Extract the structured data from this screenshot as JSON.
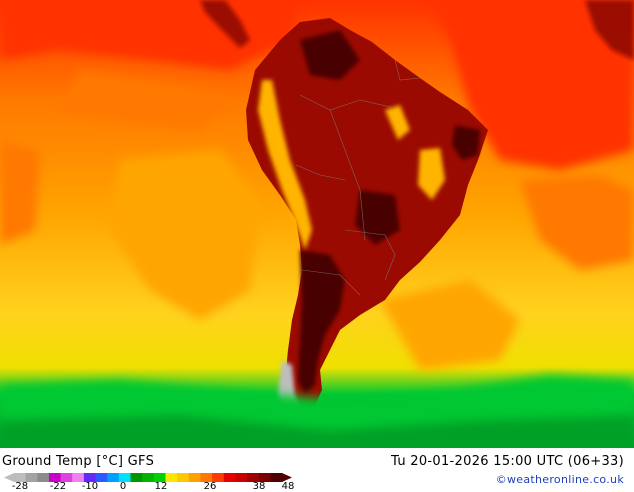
{
  "title": "Ground Temp [°C] GFS",
  "runtime": "Tu 20-01-2026 15:00 UTC (06+33)",
  "credit": "©weatheronline.co.uk",
  "legend": {
    "ticks": [
      "-28",
      "-22",
      "-10",
      "0",
      "12",
      "26",
      "38",
      "48"
    ],
    "colors": [
      "#bdbdbd",
      "#a3a3a3",
      "#8c8c8c",
      "#c800c8",
      "#e040e0",
      "#f080f0",
      "#6428ff",
      "#2d5aff",
      "#00a0ff",
      "#00e0ff",
      "#009600",
      "#00b400",
      "#00d200",
      "#ffe600",
      "#ffc800",
      "#ffa000",
      "#ff7800",
      "#ff3c00",
      "#e60000",
      "#c80000",
      "#a00000",
      "#780000",
      "#500000"
    ]
  },
  "map_colors": {
    "ocean_cold": "#00c832",
    "ocean_cool": "#ffd21e",
    "ocean_mild": "#ffa500",
    "ocean_warm": "#ff7800",
    "ocean_hot": "#ff3200",
    "land_hot": "#9b0a00",
    "land_very_hot": "#4a0000",
    "highland": "#ffb400",
    "snow": "#bebebe"
  }
}
